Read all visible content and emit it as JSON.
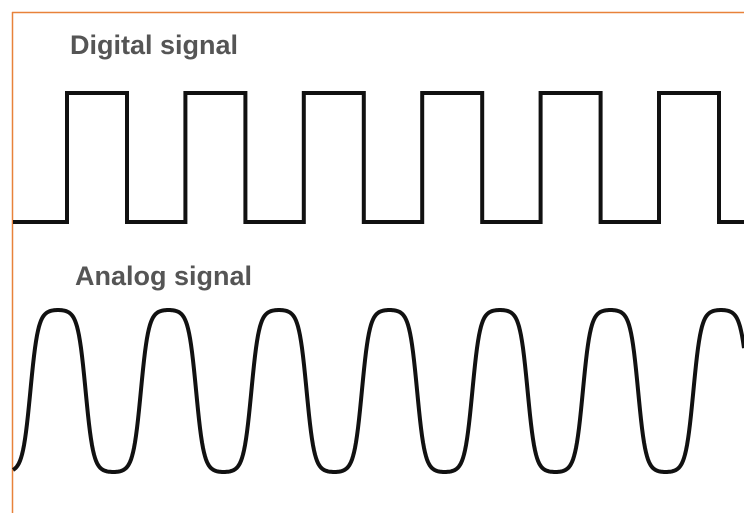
{
  "labels": {
    "digital": "Digital signal",
    "analog": "Analog signal"
  }
}
